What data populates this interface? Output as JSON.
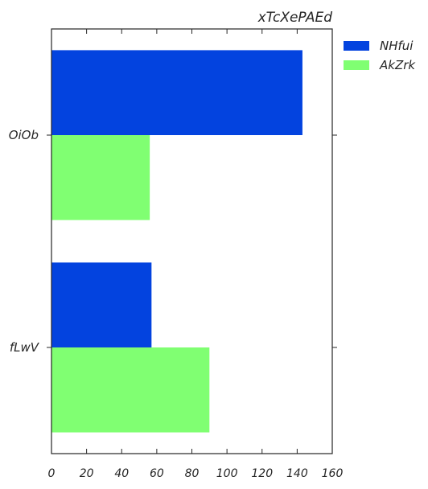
{
  "chart_data": {
    "type": "bar",
    "orientation": "horizontal",
    "title": "xTcXePAEd",
    "categories": [
      "OiOb",
      "fLwV"
    ],
    "series": [
      {
        "name": "NHfui",
        "values": [
          143,
          57
        ],
        "color": "#0343df"
      },
      {
        "name": "AkZrk",
        "values": [
          56,
          90
        ],
        "color": "#80ff72"
      }
    ],
    "xlim": [
      0,
      160
    ],
    "xticks": [
      "0",
      "20",
      "40",
      "60",
      "80",
      "100",
      "120",
      "140",
      "160"
    ],
    "xlabel": "",
    "ylabel": "",
    "grid": false,
    "legend_placement": "outside-top-right"
  }
}
